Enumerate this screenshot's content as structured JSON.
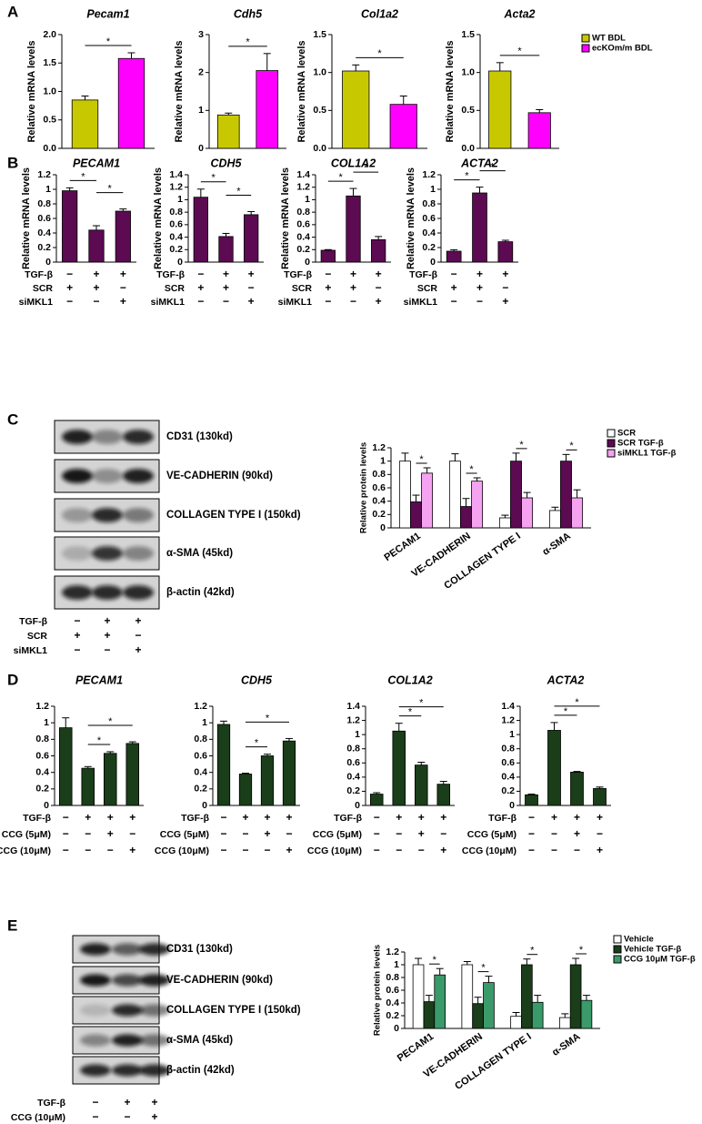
{
  "panels": [
    "A",
    "B",
    "C",
    "D",
    "E"
  ],
  "blots": [
    {
      "labels": [
        "CD31 (130kd)",
        "VE-CADHERIN (90kd)",
        "COLLAGEN TYPE I (150kd)",
        "α-SMA (45kd)",
        "β-actin (42kd)"
      ],
      "conditions": [
        {
          "name": "TGF-β",
          "marks": [
            "−",
            "+",
            "+"
          ]
        },
        {
          "name": "SCR",
          "marks": [
            "+",
            "+",
            "−"
          ]
        },
        {
          "name": "siMKL1",
          "marks": [
            "−",
            "−",
            "+"
          ]
        }
      ]
    },
    {
      "labels": [
        "CD31 (130kd)",
        "VE-CADHERIN (90kd)",
        "COLLAGEN TYPE I (150kd)",
        "α-SMA (45kd)",
        "β-actin (42kd)"
      ],
      "conditions": [
        {
          "name": "TGF-β",
          "marks": [
            "−",
            "+",
            "+"
          ]
        },
        {
          "name": "CCG (10μM)",
          "marks": [
            "−",
            "−",
            "+"
          ]
        }
      ]
    }
  ],
  "chart_data": [
    {
      "type": "bar",
      "title": "Pecam1",
      "ylabel": "Relative mRNA levels",
      "values": [
        0.85,
        1.58
      ],
      "errors": [
        0.07,
        0.1
      ],
      "colors": [
        "#c8c800",
        "#ff00ff"
      ],
      "ylim": [
        0,
        2
      ],
      "yticks": [
        {
          "value": 0,
          "label": "0.0"
        },
        {
          "value": 0.5,
          "label": "0.5"
        },
        {
          "value": 1,
          "label": "1.0"
        },
        {
          "value": 1.5,
          "label": "1.5"
        },
        {
          "value": 2,
          "label": "2.0"
        }
      ],
      "significance": [
        {
          "label": "*",
          "pair": [
            0,
            1
          ]
        }
      ],
      "legend": [
        {
          "name": "WT BDL",
          "color": "#c8c800"
        },
        {
          "name": "ecKOm/m BDL",
          "color": "#ff00ff"
        }
      ]
    },
    {
      "type": "bar",
      "title": "Cdh5",
      "ylabel": "Relative mRNA levels",
      "values": [
        0.88,
        2.05
      ],
      "errors": [
        0.05,
        0.45
      ],
      "colors": [
        "#c8c800",
        "#ff00ff"
      ],
      "ylim": [
        0,
        3
      ],
      "yticks": [
        0,
        1,
        2,
        3
      ],
      "significance": [
        {
          "label": "*",
          "pair": [
            0,
            1
          ]
        }
      ]
    },
    {
      "type": "bar",
      "title": "Col1a2",
      "ylabel": "Relative mRNA levels",
      "values": [
        1.02,
        0.58
      ],
      "errors": [
        0.08,
        0.11
      ],
      "colors": [
        "#c8c800",
        "#ff00ff"
      ],
      "ylim": [
        0,
        1.5
      ],
      "yticks": [
        {
          "value": 0,
          "label": "0.0"
        },
        {
          "value": 0.5,
          "label": "0.5"
        },
        {
          "value": 1,
          "label": "1.0"
        },
        {
          "value": 1.5,
          "label": "1.5"
        }
      ],
      "significance": [
        {
          "label": "*",
          "pair": [
            0,
            1
          ]
        }
      ]
    },
    {
      "type": "bar",
      "title": "Acta2",
      "ylabel": "Relative mRNA levels",
      "values": [
        1.02,
        0.47
      ],
      "errors": [
        0.11,
        0.04
      ],
      "colors": [
        "#c8c800",
        "#ff00ff"
      ],
      "ylim": [
        0,
        1.5
      ],
      "yticks": [
        {
          "value": 0,
          "label": "0.0"
        },
        {
          "value": 0.5,
          "label": "0.5"
        },
        {
          "value": 1,
          "label": "1.0"
        },
        {
          "value": 1.5,
          "label": "1.5"
        }
      ],
      "significance": [
        {
          "label": "*",
          "pair": [
            0,
            1
          ]
        }
      ]
    },
    {
      "type": "bar",
      "title": "PECAM1",
      "ylabel": "Relative mRNA levels",
      "values": [
        0.98,
        0.44,
        0.7
      ],
      "errors": [
        0.04,
        0.06,
        0.03
      ],
      "color": "#5c0a52",
      "ylim": [
        0,
        1.2
      ],
      "yticks": [
        0,
        0.2,
        0.4,
        0.6,
        0.8,
        1,
        1.2
      ],
      "significance": [
        {
          "label": "*",
          "pair": [
            0,
            1
          ]
        },
        {
          "label": "*",
          "pair": [
            1,
            2
          ]
        }
      ],
      "conditions": [
        {
          "name": "TGF-β",
          "marks": [
            "−",
            "+",
            "+"
          ]
        },
        {
          "name": "SCR",
          "marks": [
            "+",
            "+",
            "−"
          ]
        },
        {
          "name": "siMKL1",
          "marks": [
            "−",
            "−",
            "+"
          ]
        }
      ]
    },
    {
      "type": "bar",
      "title": "CDH5",
      "ylabel": "Relative mRNA levels",
      "values": [
        1.04,
        0.41,
        0.76
      ],
      "errors": [
        0.13,
        0.05,
        0.05
      ],
      "color": "#5c0a52",
      "ylim": [
        0,
        1.4
      ],
      "yticks": [
        0,
        0.2,
        0.4,
        0.6,
        0.8,
        1,
        1.2,
        1.4
      ],
      "significance": [
        {
          "label": "*",
          "pair": [
            0,
            1
          ]
        },
        {
          "label": "*",
          "pair": [
            1,
            2
          ]
        }
      ],
      "conditions": [
        {
          "name": "TGF-β",
          "marks": [
            "−",
            "+",
            "+"
          ]
        },
        {
          "name": "SCR",
          "marks": [
            "+",
            "+",
            "−"
          ]
        },
        {
          "name": "siMKL1",
          "marks": [
            "−",
            "−",
            "+"
          ]
        }
      ]
    },
    {
      "type": "bar",
      "title": "COL1A2",
      "ylabel": "Relative mRNA levels",
      "values": [
        0.19,
        1.06,
        0.36
      ],
      "errors": [
        0.01,
        0.12,
        0.05
      ],
      "color": "#5c0a52",
      "ylim": [
        0,
        1.4
      ],
      "yticks": [
        0,
        0.2,
        0.4,
        0.6,
        0.8,
        1,
        1.2,
        1.4
      ],
      "significance": [
        {
          "label": "*",
          "pair": [
            0,
            1
          ]
        },
        {
          "label": "*",
          "pair": [
            1,
            2
          ]
        }
      ],
      "conditions": [
        {
          "name": "TGF-β",
          "marks": [
            "−",
            "+",
            "+"
          ]
        },
        {
          "name": "SCR",
          "marks": [
            "+",
            "+",
            "−"
          ]
        },
        {
          "name": "siMKL1",
          "marks": [
            "−",
            "−",
            "+"
          ]
        }
      ]
    },
    {
      "type": "bar",
      "title": "ACTA2",
      "ylabel": "Relative mRNA levels",
      "values": [
        0.15,
        0.95,
        0.28
      ],
      "errors": [
        0.02,
        0.08,
        0.02
      ],
      "color": "#5c0a52",
      "ylim": [
        0,
        1.2
      ],
      "yticks": [
        0,
        0.2,
        0.4,
        0.6,
        0.8,
        1,
        1.2
      ],
      "significance": [
        {
          "label": "*",
          "pair": [
            0,
            1
          ]
        },
        {
          "label": "*",
          "pair": [
            1,
            2
          ]
        }
      ],
      "conditions": [
        {
          "name": "TGF-β",
          "marks": [
            "−",
            "+",
            "+"
          ]
        },
        {
          "name": "SCR",
          "marks": [
            "+",
            "+",
            "−"
          ]
        },
        {
          "name": "siMKL1",
          "marks": [
            "−",
            "−",
            "+"
          ]
        }
      ]
    },
    {
      "type": "grouped_bar",
      "ylabel": "Relative protein levels",
      "categories": [
        "PECAM1",
        "VE-CADHERIN",
        "COLLAGEN TYPE I",
        "α-SMA"
      ],
      "series": [
        {
          "name": "SCR",
          "color": "#ffffff",
          "values": [
            1.0,
            1.0,
            0.15,
            0.26
          ],
          "errors": [
            0.12,
            0.11,
            0.04,
            0.05
          ]
        },
        {
          "name": "SCR TGF-β",
          "color": "#5c0a52",
          "values": [
            0.39,
            0.32,
            1.0,
            1.0
          ],
          "errors": [
            0.1,
            0.12,
            0.12,
            0.1
          ]
        },
        {
          "name": "siMKL1 TGF-β",
          "color": "#f5a3f0",
          "values": [
            0.82,
            0.7,
            0.45,
            0.45
          ],
          "errors": [
            0.08,
            0.05,
            0.08,
            0.12
          ]
        }
      ],
      "ylim": [
        0,
        1.2
      ],
      "yticks": [
        0,
        0.2,
        0.4,
        0.6,
        0.8,
        1,
        1.2
      ],
      "significance": [
        {
          "label": "*",
          "category": 0,
          "pair": [
            1,
            2
          ]
        },
        {
          "label": "*",
          "category": 1,
          "pair": [
            1,
            2
          ]
        },
        {
          "label": "*",
          "category": 2,
          "pair": [
            1,
            2
          ]
        },
        {
          "label": "*",
          "category": 3,
          "pair": [
            1,
            2
          ]
        }
      ]
    },
    {
      "type": "bar",
      "title": "PECAM1",
      "values": [
        0.94,
        0.45,
        0.63,
        0.75
      ],
      "errors": [
        0.12,
        0.02,
        0.02,
        0.02
      ],
      "color": "#1a3d1a",
      "ylim": [
        0,
        1.2
      ],
      "yticks": [
        0,
        0.2,
        0.4,
        0.6,
        0.8,
        1,
        1.2
      ],
      "significance": [
        {
          "label": "*",
          "pair": [
            1,
            2
          ]
        },
        {
          "label": "*",
          "pair": [
            1,
            3
          ]
        }
      ],
      "conditions": [
        {
          "name": "TGF-β",
          "marks": [
            "−",
            "+",
            "+",
            "+"
          ]
        },
        {
          "name": "CCG (5μM)",
          "marks": [
            "−",
            "−",
            "+",
            "−"
          ]
        },
        {
          "name": "CCG (10μM)",
          "marks": [
            "−",
            "−",
            "−",
            "+"
          ]
        }
      ]
    },
    {
      "type": "bar",
      "title": "CDH5",
      "values": [
        0.98,
        0.38,
        0.6,
        0.78
      ],
      "errors": [
        0.04,
        0.01,
        0.02,
        0.03
      ],
      "color": "#1a3d1a",
      "ylim": [
        0,
        1.2
      ],
      "yticks": [
        0,
        0.2,
        0.4,
        0.6,
        0.8,
        1,
        1.2
      ],
      "significance": [
        {
          "label": "*",
          "pair": [
            1,
            2
          ]
        },
        {
          "label": "*",
          "pair": [
            1,
            3
          ]
        }
      ],
      "conditions": [
        {
          "name": "TGF-β",
          "marks": [
            "−",
            "+",
            "+",
            "+"
          ]
        },
        {
          "name": "CCG (5μM)",
          "marks": [
            "−",
            "−",
            "+",
            "−"
          ]
        },
        {
          "name": "CCG (10μM)",
          "marks": [
            "−",
            "−",
            "−",
            "+"
          ]
        }
      ]
    },
    {
      "type": "bar",
      "title": "COL1A2",
      "values": [
        0.16,
        1.05,
        0.57,
        0.3
      ],
      "errors": [
        0.02,
        0.11,
        0.04,
        0.04
      ],
      "color": "#1a3d1a",
      "ylim": [
        0,
        1.4
      ],
      "yticks": [
        0,
        0.2,
        0.4,
        0.6,
        0.8,
        1,
        1.2,
        1.4
      ],
      "significance": [
        {
          "label": "*",
          "pair": [
            1,
            2
          ]
        },
        {
          "label": "*",
          "pair": [
            1,
            3
          ]
        }
      ],
      "conditions": [
        {
          "name": "TGF-β",
          "marks": [
            "−",
            "+",
            "+",
            "+"
          ]
        },
        {
          "name": "CCG (5μM)",
          "marks": [
            "−",
            "−",
            "+",
            "−"
          ]
        },
        {
          "name": "CCG (10μM)",
          "marks": [
            "−",
            "−",
            "−",
            "+"
          ]
        }
      ]
    },
    {
      "type": "bar",
      "title": "ACTA2",
      "values": [
        0.15,
        1.06,
        0.47,
        0.24
      ],
      "errors": [
        0.01,
        0.11,
        0.01,
        0.02
      ],
      "color": "#1a3d1a",
      "ylim": [
        0,
        1.4
      ],
      "yticks": [
        0,
        0.2,
        0.4,
        0.6,
        0.8,
        1,
        1.2,
        1.4
      ],
      "significance": [
        {
          "label": "*",
          "pair": [
            1,
            2
          ]
        },
        {
          "label": "*",
          "pair": [
            1,
            3
          ]
        }
      ],
      "conditions": [
        {
          "name": "TGF-β",
          "marks": [
            "−",
            "+",
            "+",
            "+"
          ]
        },
        {
          "name": "CCG (5μM)",
          "marks": [
            "−",
            "−",
            "+",
            "−"
          ]
        },
        {
          "name": "CCG (10μM)",
          "marks": [
            "−",
            "−",
            "−",
            "+"
          ]
        }
      ]
    },
    {
      "type": "grouped_bar",
      "ylabel": "Relative protein levels",
      "categories": [
        "PECAM1",
        "VE-CADHERIN",
        "COLLAGEN TYPE I",
        "α-SMA"
      ],
      "series": [
        {
          "name": "Vehicle",
          "color": "#ffffff",
          "values": [
            1.0,
            1.0,
            0.19,
            0.17
          ],
          "errors": [
            0.1,
            0.05,
            0.06,
            0.06
          ]
        },
        {
          "name": "Vehicle TGF-β",
          "color": "#1a3d1a",
          "values": [
            0.42,
            0.39,
            1.0,
            1.0
          ],
          "errors": [
            0.1,
            0.1,
            0.09,
            0.1
          ]
        },
        {
          "name": "CCG 10μM TGF-β",
          "color": "#3a9a6a",
          "values": [
            0.84,
            0.72,
            0.41,
            0.44
          ],
          "errors": [
            0.1,
            0.1,
            0.11,
            0.08
          ]
        }
      ],
      "ylim": [
        0,
        1.2
      ],
      "yticks": [
        0,
        0.2,
        0.4,
        0.6,
        0.8,
        1,
        1.2
      ],
      "significance": [
        {
          "label": "*",
          "category": 0,
          "pair": [
            1,
            2
          ]
        },
        {
          "label": "*",
          "category": 1,
          "pair": [
            1,
            2
          ]
        },
        {
          "label": "*",
          "category": 2,
          "pair": [
            1,
            2
          ]
        },
        {
          "label": "*",
          "category": 3,
          "pair": [
            1,
            2
          ]
        }
      ]
    }
  ]
}
